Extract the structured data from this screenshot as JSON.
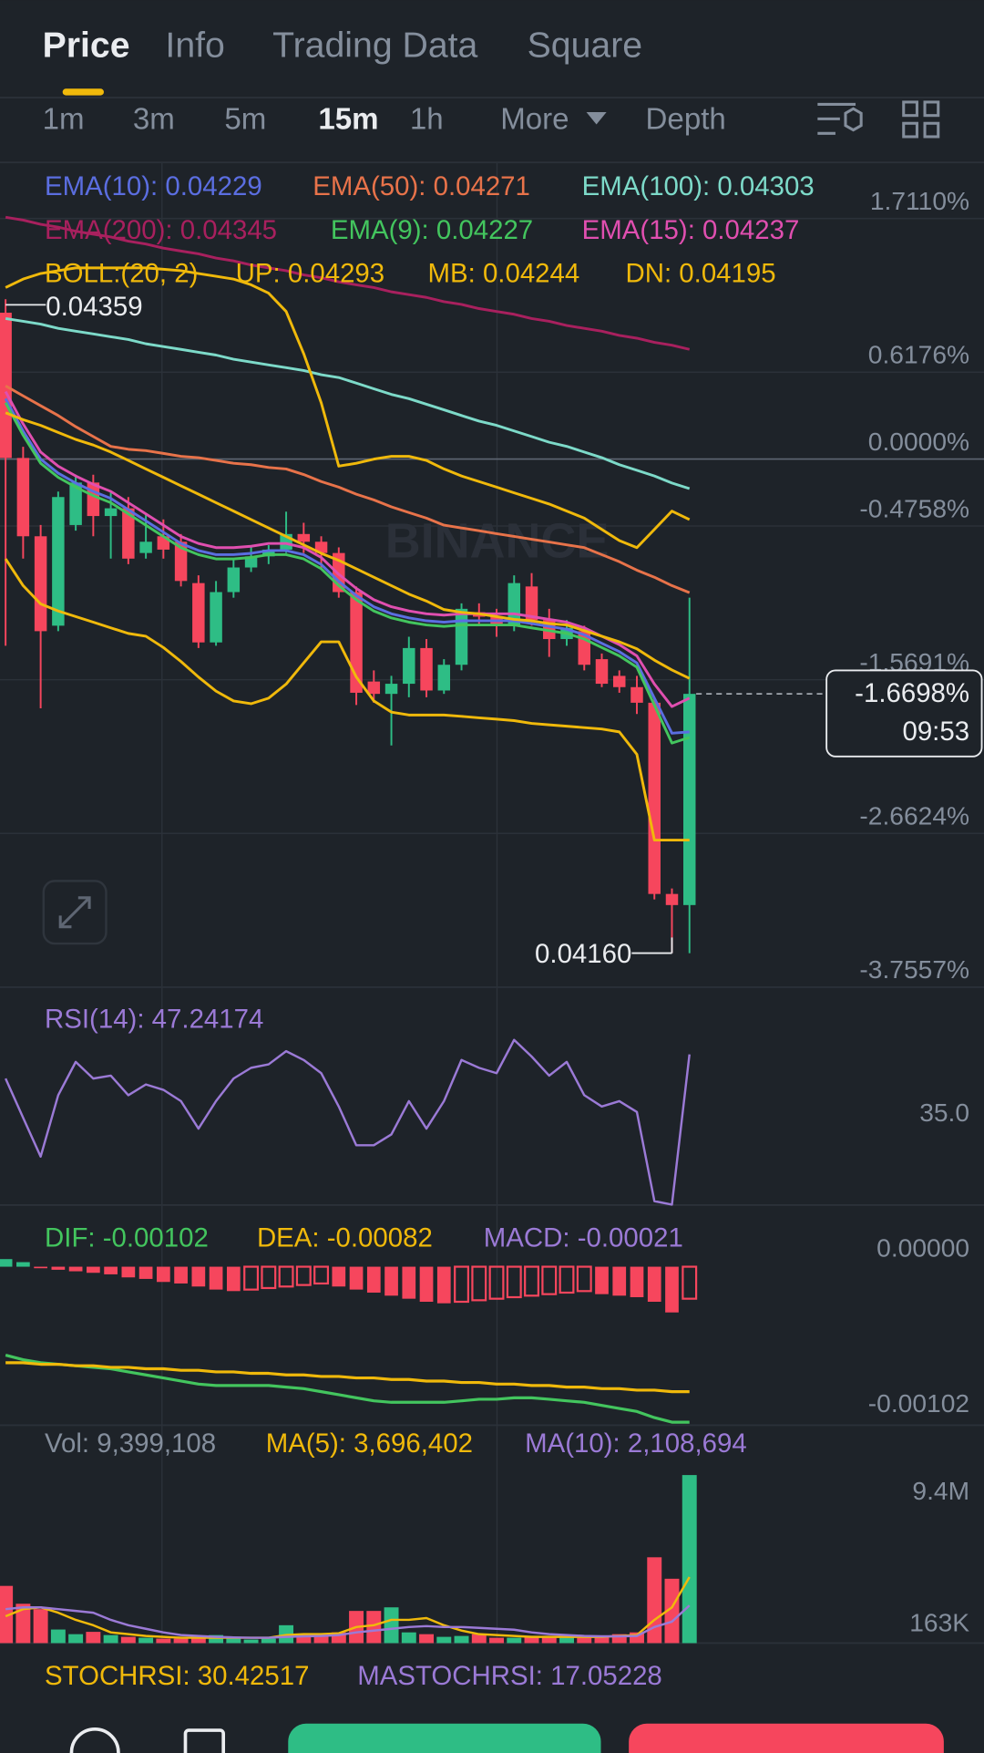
{
  "tabs": [
    "Price",
    "Info",
    "Trading Data",
    "Square"
  ],
  "intervals": [
    "1m",
    "3m",
    "5m",
    "15m",
    "1h",
    "More",
    "Depth"
  ],
  "stochrsi": "STOCHRSI: 30.42517",
  "mastochrsi": "MASTOCHRSI: 17.05228",
  "chart_data": [
    {
      "type": "candlestick",
      "indicator": "BOLL:(20, 2)",
      "watermark": "BINANCE",
      "max_label": "0.04359",
      "min_label": "0.04160",
      "current": {
        "value": -1.6698,
        "label": "-1.6698%",
        "countdown": "09:53"
      },
      "up_color": "#2ebd85",
      "down_color": "#f6465d",
      "ylim": [
        -3.7557,
        2.11
      ],
      "yticks": [
        {
          "value": 1.711,
          "label": "1.7110%"
        },
        {
          "value": 0.6176,
          "label": "0.6176%"
        },
        {
          "value": 0,
          "label": "0.0000%"
        },
        {
          "value": -0.4758,
          "label": "-0.4758%"
        },
        {
          "value": -1.5691,
          "label": "-1.5691%"
        },
        {
          "value": -2.6624,
          "label": "-2.6624%"
        },
        {
          "value": -3.7557,
          "label": "-3.7557%"
        }
      ],
      "grid": true,
      "open": [
        1.041,
        0.008,
        -0.549,
        -1.185,
        -0.469,
        -0.167,
        -0.405,
        -0.35,
        -0.668,
        -0.549,
        -0.588,
        -0.882,
        -1.304,
        -0.946,
        -0.771,
        -0.692,
        -0.644,
        -0.533,
        -0.588,
        -0.668,
        -0.946,
        -1.582,
        -1.67,
        -1.598,
        -1.344,
        -1.646,
        -1.463,
        -1.089,
        -1.121,
        -1.185,
        -0.906,
        -1.145,
        -1.28,
        -1.224,
        -1.423,
        -1.542,
        -1.622,
        -1.733,
        -3.093,
        -3.172
      ],
      "high": [
        1.137,
        0.087,
        -0.469,
        -0.231,
        -0.111,
        -0.111,
        -0.231,
        -0.27,
        -0.39,
        -0.429,
        -0.533,
        -0.827,
        -0.867,
        -0.708,
        -0.628,
        -0.612,
        -0.374,
        -0.453,
        -0.549,
        -0.628,
        -0.906,
        -1.503,
        -1.542,
        -1.264,
        -1.28,
        -1.423,
        -1.026,
        -1.026,
        -1.065,
        -0.827,
        -0.811,
        -1.065,
        -1.145,
        -1.185,
        -1.383,
        -1.503,
        -1.542,
        -1.694,
        -3.054,
        -0.986
      ],
      "low": [
        -1.328,
        -0.708,
        -1.773,
        -1.224,
        -0.509,
        -0.549,
        -0.708,
        -0.747,
        -0.708,
        -0.708,
        -0.906,
        -1.344,
        -1.328,
        -0.986,
        -0.803,
        -0.747,
        -0.668,
        -0.668,
        -0.787,
        -0.986,
        -1.749,
        -1.733,
        -2.037,
        -1.694,
        -1.694,
        -1.67,
        -1.503,
        -1.185,
        -1.264,
        -1.224,
        -1.185,
        -1.407,
        -1.328,
        -1.503,
        -1.622,
        -1.662,
        -1.813,
        -3.132,
        -3.514,
        -3.514
      ],
      "close": [
        0.008,
        -0.549,
        -1.224,
        -0.27,
        -0.167,
        -0.405,
        -0.35,
        -0.708,
        -0.588,
        -0.644,
        -0.867,
        -1.304,
        -0.946,
        -0.771,
        -0.692,
        -0.644,
        -0.533,
        -0.588,
        -0.668,
        -0.946,
        -1.662,
        -1.67,
        -1.598,
        -1.344,
        -1.646,
        -1.463,
        -1.065,
        -1.121,
        -1.185,
        -0.882,
        -1.145,
        -1.28,
        -1.2,
        -1.463,
        -1.598,
        -1.622,
        -1.733,
        -3.093,
        -3.172,
        -1.6698
      ],
      "series": [
        {
          "name": "EMA(10): 0.04229",
          "color": "#5b6ee1",
          "values": [
            0.43,
            0.2,
            0.0,
            -0.1,
            -0.17,
            -0.23,
            -0.28,
            -0.36,
            -0.44,
            -0.52,
            -0.6,
            -0.65,
            -0.68,
            -0.68,
            -0.67,
            -0.65,
            -0.65,
            -0.68,
            -0.75,
            -0.87,
            -0.97,
            -1.05,
            -1.1,
            -1.13,
            -1.15,
            -1.16,
            -1.15,
            -1.15,
            -1.15,
            -1.15,
            -1.17,
            -1.19,
            -1.21,
            -1.25,
            -1.31,
            -1.37,
            -1.45,
            -1.7,
            -1.95,
            -1.94
          ]
        },
        {
          "name": "EMA(50): 0.04271",
          "color": "#e8734a",
          "values": [
            0.52,
            0.45,
            0.38,
            0.31,
            0.23,
            0.16,
            0.09,
            0.07,
            0.06,
            0.04,
            0.02,
            0.01,
            -0.01,
            -0.03,
            -0.04,
            -0.06,
            -0.07,
            -0.11,
            -0.16,
            -0.2,
            -0.25,
            -0.29,
            -0.34,
            -0.38,
            -0.42,
            -0.47,
            -0.49,
            -0.51,
            -0.53,
            -0.55,
            -0.57,
            -0.59,
            -0.61,
            -0.63,
            -0.68,
            -0.73,
            -0.79,
            -0.84,
            -0.9,
            -0.95
          ]
        },
        {
          "name": "EMA(100): 0.04303",
          "color": "#7ddac9",
          "values": [
            1.0,
            0.98,
            0.96,
            0.93,
            0.91,
            0.89,
            0.87,
            0.85,
            0.82,
            0.8,
            0.78,
            0.76,
            0.74,
            0.71,
            0.69,
            0.67,
            0.65,
            0.63,
            0.6,
            0.58,
            0.54,
            0.5,
            0.46,
            0.43,
            0.39,
            0.35,
            0.31,
            0.27,
            0.24,
            0.2,
            0.16,
            0.12,
            0.09,
            0.05,
            0.01,
            -0.04,
            -0.08,
            -0.12,
            -0.17,
            -0.21
          ]
        },
        {
          "name": "EMA(200): 0.04345",
          "color": "#a8205e",
          "values": [
            1.72,
            1.7,
            1.67,
            1.65,
            1.62,
            1.6,
            1.58,
            1.55,
            1.53,
            1.5,
            1.48,
            1.46,
            1.43,
            1.41,
            1.38,
            1.36,
            1.34,
            1.31,
            1.29,
            1.26,
            1.24,
            1.22,
            1.19,
            1.17,
            1.15,
            1.12,
            1.1,
            1.07,
            1.05,
            1.03,
            1.0,
            0.98,
            0.95,
            0.93,
            0.91,
            0.88,
            0.86,
            0.83,
            0.81,
            0.78
          ]
        },
        {
          "name": "EMA(9): 0.04227",
          "color": "#43c55e",
          "values": [
            0.4,
            0.17,
            -0.03,
            -0.13,
            -0.2,
            -0.26,
            -0.31,
            -0.39,
            -0.47,
            -0.55,
            -0.63,
            -0.68,
            -0.71,
            -0.71,
            -0.7,
            -0.68,
            -0.68,
            -0.71,
            -0.78,
            -0.9,
            -1.0,
            -1.08,
            -1.13,
            -1.16,
            -1.18,
            -1.19,
            -1.18,
            -1.18,
            -1.18,
            -1.18,
            -1.2,
            -1.22,
            -1.24,
            -1.28,
            -1.34,
            -1.4,
            -1.48,
            -1.75,
            -2.02,
            -1.98
          ]
        },
        {
          "name": "EMA(15): 0.04237",
          "color": "#e04fb0",
          "values": [
            0.48,
            0.25,
            0.05,
            -0.05,
            -0.12,
            -0.18,
            -0.23,
            -0.31,
            -0.39,
            -0.47,
            -0.55,
            -0.6,
            -0.63,
            -0.63,
            -0.62,
            -0.6,
            -0.6,
            -0.63,
            -0.7,
            -0.82,
            -0.92,
            -1.0,
            -1.05,
            -1.08,
            -1.1,
            -1.11,
            -1.1,
            -1.1,
            -1.1,
            -1.1,
            -1.12,
            -1.14,
            -1.16,
            -1.2,
            -1.26,
            -1.32,
            -1.4,
            -1.6,
            -1.76,
            -1.7
          ]
        },
        {
          "name": "UP: 0.04293",
          "color": "#f0b90b",
          "values": [
            1.22,
            1.28,
            1.32,
            1.34,
            1.36,
            1.36,
            1.36,
            1.36,
            1.36,
            1.35,
            1.34,
            1.32,
            1.3,
            1.28,
            1.24,
            1.18,
            1.05,
            0.75,
            0.4,
            -0.05,
            -0.03,
            0.0,
            0.02,
            0.02,
            -0.01,
            -0.07,
            -0.12,
            -0.16,
            -0.2,
            -0.24,
            -0.28,
            -0.32,
            -0.37,
            -0.42,
            -0.5,
            -0.58,
            -0.63,
            -0.5,
            -0.37,
            -0.43
          ]
        },
        {
          "name": "MB: 0.04244",
          "color": "#f0b90b",
          "values": [
            0.33,
            0.28,
            0.24,
            0.19,
            0.14,
            0.1,
            0.05,
            -0.01,
            -0.07,
            -0.13,
            -0.19,
            -0.25,
            -0.31,
            -0.37,
            -0.43,
            -0.49,
            -0.55,
            -0.61,
            -0.67,
            -0.72,
            -0.78,
            -0.84,
            -0.9,
            -0.96,
            -1.01,
            -1.07,
            -1.09,
            -1.1,
            -1.12,
            -1.14,
            -1.15,
            -1.17,
            -1.18,
            -1.22,
            -1.26,
            -1.3,
            -1.35,
            -1.43,
            -1.5,
            -1.56
          ]
        },
        {
          "name": "DN: 0.04195",
          "color": "#f0b90b",
          "values": [
            -0.71,
            -0.9,
            -1.03,
            -1.08,
            -1.12,
            -1.16,
            -1.2,
            -1.24,
            -1.26,
            -1.34,
            -1.44,
            -1.55,
            -1.65,
            -1.72,
            -1.74,
            -1.7,
            -1.6,
            -1.45,
            -1.3,
            -1.3,
            -1.55,
            -1.72,
            -1.8,
            -1.82,
            -1.82,
            -1.82,
            -1.83,
            -1.84,
            -1.85,
            -1.86,
            -1.88,
            -1.89,
            -1.9,
            -1.91,
            -1.92,
            -1.94,
            -2.1,
            -2.71,
            -2.71,
            -2.71
          ]
        }
      ]
    },
    {
      "type": "line",
      "ylim": [
        16.5,
        60.5
      ],
      "yticks": [
        {
          "value": 35,
          "label": "35.0"
        }
      ],
      "grid": false,
      "series": [
        {
          "name": "RSI(14): 47.24174",
          "color": "#9b7ad6",
          "values": [
            42.3,
            34.3,
            26.4,
            38.9,
            45.7,
            42.3,
            42.9,
            38.9,
            41.1,
            40.0,
            37.7,
            32.1,
            37.7,
            42.3,
            44.5,
            45.2,
            47.9,
            46.1,
            43.4,
            36.6,
            28.7,
            28.7,
            30.9,
            37.7,
            32.1,
            37.7,
            46.1,
            44.5,
            43.4,
            50.2,
            46.8,
            42.9,
            45.7,
            38.9,
            36.6,
            37.7,
            35.5,
            17.3,
            16.6,
            47.24174
          ]
        }
      ]
    },
    {
      "type": "macd",
      "ylim": [
        -0.00104,
        0.00039
      ],
      "yticks": [
        {
          "value": 0,
          "label": "0.00000"
        },
        {
          "value": -0.00102,
          "label": "-0.00102"
        }
      ],
      "grid": false,
      "up_color": "#2ebd85",
      "down_color": "#f6465d",
      "series": [
        {
          "name": "DIF: -0.00102",
          "color": "#43c55e",
          "values": [
            -0.00058,
            -0.00061,
            -0.00063,
            -0.00064,
            -0.00065,
            -0.00066,
            -0.00067,
            -0.00069,
            -0.00071,
            -0.00073,
            -0.00075,
            -0.00077,
            -0.00078,
            -0.00078,
            -0.00078,
            -0.00078,
            -0.00079,
            -0.0008,
            -0.00082,
            -0.00084,
            -0.00086,
            -0.00088,
            -0.00089,
            -0.00089,
            -0.00089,
            -0.00089,
            -0.00088,
            -0.00087,
            -0.00087,
            -0.00086,
            -0.00086,
            -0.00087,
            -0.00088,
            -0.00089,
            -0.00091,
            -0.00093,
            -0.00095,
            -0.00099,
            -0.00102,
            -0.00102
          ]
        },
        {
          "name": "DEA: -0.00082",
          "color": "#f0b90b",
          "values": [
            -0.00063,
            -0.00063,
            -0.00064,
            -0.00064,
            -0.00065,
            -0.00065,
            -0.00066,
            -0.00066,
            -0.00067,
            -0.00067,
            -0.00068,
            -0.00068,
            -0.00069,
            -0.00069,
            -0.0007,
            -0.0007,
            -0.00071,
            -0.00071,
            -0.00072,
            -0.00072,
            -0.00073,
            -0.00073,
            -0.00074,
            -0.00074,
            -0.00075,
            -0.00075,
            -0.00076,
            -0.00076,
            -0.00077,
            -0.00077,
            -0.00078,
            -0.00078,
            -0.00079,
            -0.00079,
            -0.0008,
            -0.0008,
            -0.00081,
            -0.00081,
            -0.00082,
            -0.00082
          ]
        }
      ],
      "histogram": {
        "name": "MACD: -0.00021",
        "color": "#9b7ad6",
        "values": [
          5e-05,
          3e-05,
          -1e-05,
          -2e-05,
          -3e-05,
          -4e-05,
          -5e-05,
          -7e-05,
          -8e-05,
          -0.0001,
          -0.00011,
          -0.00013,
          -0.00015,
          -0.00016,
          -0.00015,
          -0.00014,
          -0.00013,
          -0.00012,
          -0.00011,
          -0.00013,
          -0.00015,
          -0.00017,
          -0.00019,
          -0.00021,
          -0.00023,
          -0.00024,
          -0.00023,
          -0.00022,
          -0.00021,
          -0.0002,
          -0.00019,
          -0.00018,
          -0.00017,
          -0.00016,
          -0.00018,
          -0.00019,
          -0.0002,
          -0.00023,
          -0.0003,
          -0.00021
        ]
      }
    },
    {
      "type": "volume",
      "name": "Vol: 9,399,108",
      "ylim": [
        0,
        12000000
      ],
      "yticks": [
        {
          "value": 9400000,
          "label": "9.4M"
        },
        {
          "value": 163000,
          "label": "163K"
        }
      ],
      "grid": false,
      "up_color": "#2ebd85",
      "down_color": "#f6465d",
      "values": [
        3200000,
        2200000,
        1900000,
        760000,
        500000,
        630000,
        450000,
        350000,
        300000,
        250000,
        250000,
        300000,
        450000,
        300000,
        200000,
        250000,
        1000000,
        500000,
        400000,
        600000,
        1800000,
        1800000,
        2000000,
        600000,
        500000,
        350000,
        400000,
        500000,
        300000,
        300000,
        400000,
        300000,
        350000,
        300000,
        350000,
        500000,
        600000,
        4800000,
        3600000,
        9399108
      ],
      "series": [
        {
          "name": "MA(5): 3,696,402",
          "color": "#f0b90b",
          "values": [
            1500000,
            1900000,
            2000000,
            1700000,
            1300000,
            1000000,
            600000,
            500000,
            400000,
            350000,
            300000,
            300000,
            300000,
            300000,
            300000,
            300000,
            450000,
            500000,
            500000,
            550000,
            900000,
            1000000,
            1300000,
            1300000,
            1400000,
            1000000,
            700000,
            500000,
            450000,
            400000,
            350000,
            350000,
            350000,
            350000,
            350000,
            400000,
            450000,
            1300000,
            2000000,
            3696402
          ]
        },
        {
          "name": "MA(10): 2,108,694",
          "color": "#9b7ad6",
          "values": [
            1900000,
            2000000,
            2000000,
            1900000,
            1800000,
            1700000,
            1300000,
            1000000,
            800000,
            600000,
            450000,
            400000,
            350000,
            320000,
            300000,
            300000,
            350000,
            380000,
            400000,
            450000,
            600000,
            700000,
            800000,
            900000,
            950000,
            900000,
            900000,
            850000,
            800000,
            750000,
            600000,
            500000,
            450000,
            400000,
            380000,
            380000,
            400000,
            900000,
            1200000,
            2108694
          ]
        }
      ]
    }
  ]
}
